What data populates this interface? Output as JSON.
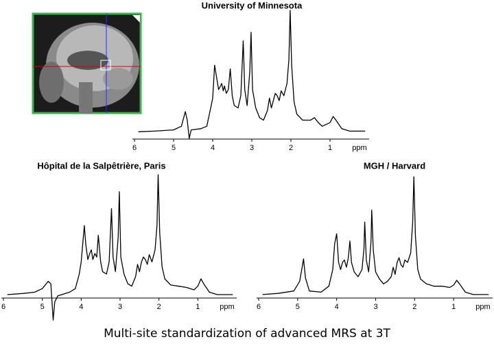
{
  "caption": "Multi-site standardization of advanced MRS at 3T",
  "chart_data": [
    {
      "type": "line",
      "title": "University of Minnesota",
      "xlabel": "ppm",
      "color": "#000000",
      "xlim": [
        6,
        0
      ],
      "ylim": [
        -10,
        100
      ],
      "xticks": [
        6,
        5,
        4,
        3,
        2,
        1
      ],
      "x": [
        5.9,
        5.5,
        5.0,
        4.8,
        4.7,
        4.65,
        4.6,
        4.55,
        4.3,
        4.15,
        4.05,
        4.0,
        3.95,
        3.9,
        3.85,
        3.8,
        3.77,
        3.73,
        3.7,
        3.65,
        3.6,
        3.55,
        3.5,
        3.45,
        3.35,
        3.28,
        3.22,
        3.18,
        3.12,
        3.05,
        3.02,
        2.98,
        2.9,
        2.8,
        2.7,
        2.6,
        2.55,
        2.5,
        2.45,
        2.4,
        2.35,
        2.3,
        2.25,
        2.18,
        2.1,
        2.05,
        2.02,
        1.98,
        1.92,
        1.85,
        1.7,
        1.5,
        1.4,
        1.3,
        1.2,
        1.0,
        0.92,
        0.85,
        0.7,
        0.5,
        0.1
      ],
      "values": [
        0.5,
        1,
        2,
        5,
        17,
        10,
        -5,
        2,
        3,
        5,
        20,
        28,
        55,
        45,
        35,
        38,
        40,
        34,
        38,
        32,
        35,
        52,
        30,
        22,
        20,
        30,
        75,
        35,
        22,
        50,
        82,
        35,
        20,
        12,
        10,
        18,
        28,
        20,
        26,
        32,
        30,
        26,
        34,
        30,
        40,
        60,
        100,
        55,
        25,
        15,
        10,
        10,
        12,
        8,
        5,
        8,
        13,
        10,
        3,
        1,
        1
      ]
    },
    {
      "type": "line",
      "title": "Hôpital de la Salpêtrière, Paris",
      "xlabel": "ppm",
      "color": "#000000",
      "xlim": [
        6,
        0
      ],
      "ylim": [
        -25,
        100
      ],
      "xticks": [
        6,
        5,
        4,
        3,
        2,
        1
      ],
      "x": [
        5.9,
        5.5,
        5.2,
        5.0,
        4.85,
        4.78,
        4.72,
        4.68,
        4.6,
        4.3,
        4.15,
        4.05,
        4.0,
        3.92,
        3.88,
        3.83,
        3.78,
        3.74,
        3.7,
        3.65,
        3.6,
        3.56,
        3.5,
        3.45,
        3.35,
        3.28,
        3.22,
        3.18,
        3.12,
        3.05,
        3.02,
        2.98,
        2.9,
        2.8,
        2.7,
        2.6,
        2.55,
        2.5,
        2.45,
        2.4,
        2.35,
        2.3,
        2.25,
        2.18,
        2.1,
        2.05,
        2.02,
        1.98,
        1.92,
        1.85,
        1.7,
        1.5,
        1.3,
        1.1,
        1.0,
        0.92,
        0.85,
        0.7,
        0.5,
        0.1
      ],
      "values": [
        1,
        2,
        3,
        6,
        12,
        10,
        -20,
        -5,
        0,
        3,
        6,
        18,
        28,
        58,
        42,
        30,
        35,
        38,
        30,
        35,
        32,
        50,
        28,
        20,
        18,
        28,
        72,
        32,
        20,
        48,
        86,
        32,
        18,
        10,
        8,
        16,
        26,
        20,
        28,
        32,
        30,
        26,
        34,
        28,
        38,
        58,
        100,
        52,
        24,
        14,
        9,
        8,
        7,
        5,
        8,
        14,
        10,
        3,
        1,
        1
      ]
    },
    {
      "type": "line",
      "title": "MGH / Harvard",
      "xlabel": "ppm",
      "color": "#000000",
      "xlim": [
        6,
        0
      ],
      "ylim": [
        -10,
        100
      ],
      "xticks": [
        6,
        5,
        4,
        3,
        2,
        1
      ],
      "x": [
        5.9,
        5.5,
        5.1,
        4.95,
        4.88,
        4.85,
        4.8,
        4.7,
        4.4,
        4.2,
        4.1,
        4.05,
        4.0,
        3.95,
        3.9,
        3.85,
        3.8,
        3.75,
        3.7,
        3.66,
        3.62,
        3.55,
        3.45,
        3.35,
        3.3,
        3.28,
        3.24,
        3.18,
        3.12,
        3.1,
        3.06,
        3.0,
        2.9,
        2.8,
        2.7,
        2.6,
        2.55,
        2.5,
        2.45,
        2.4,
        2.35,
        2.3,
        2.25,
        2.18,
        2.1,
        2.05,
        2.02,
        1.98,
        1.92,
        1.85,
        1.7,
        1.5,
        1.3,
        1.1,
        1.0,
        0.92,
        0.85,
        0.7,
        0.5,
        0.1
      ],
      "values": [
        1,
        2,
        4,
        12,
        25,
        31,
        15,
        4,
        3,
        8,
        22,
        44,
        52,
        28,
        22,
        28,
        30,
        24,
        32,
        46,
        28,
        20,
        16,
        22,
        40,
        62,
        30,
        20,
        45,
        72,
        38,
        20,
        14,
        10,
        12,
        16,
        24,
        18,
        28,
        32,
        26,
        24,
        30,
        28,
        36,
        62,
        100,
        50,
        22,
        14,
        10,
        8,
        8,
        7,
        9,
        13,
        10,
        3,
        1,
        1
      ]
    }
  ]
}
